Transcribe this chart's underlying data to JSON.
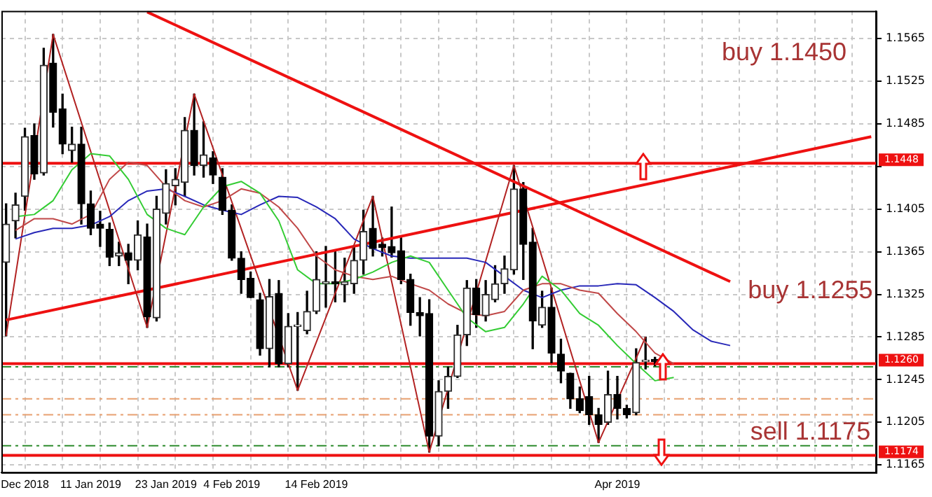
{
  "chart_data": {
    "type": "candlestick",
    "categories": [
      null,
      null,
      "Dec 2018",
      null,
      null,
      null,
      null,
      null,
      null,
      "11 Jan 2019",
      null,
      null,
      null,
      null,
      null,
      null,
      null,
      "23 Jan 2019",
      null,
      null,
      null,
      null,
      null,
      null,
      "4 Feb 2019",
      null,
      null,
      null,
      null,
      null,
      null,
      null,
      null,
      "14 Feb 2019",
      null,
      null,
      null,
      null,
      null,
      null,
      null,
      null,
      null,
      null,
      null,
      null,
      null,
      null,
      null,
      null,
      null,
      null,
      null,
      null,
      null,
      null,
      null,
      null,
      null,
      null,
      null,
      null,
      null,
      null,
      null,
      "Apr 2019",
      null,
      null,
      null,
      null,
      null,
      null,
      null,
      null,
      null,
      null,
      null,
      null,
      null,
      null,
      null,
      null,
      null,
      null,
      null,
      null,
      null,
      null,
      null,
      null,
      null,
      null,
      null
    ],
    "ohlc": [
      [
        1.1355,
        1.141,
        1.1286,
        1.1391
      ],
      [
        1.1394,
        1.142,
        1.1378,
        1.1409
      ],
      [
        1.1417,
        1.1481,
        1.1404,
        1.1473
      ],
      [
        1.1474,
        1.1485,
        1.1433,
        1.1438
      ],
      [
        1.1439,
        1.1556,
        1.1437,
        1.154
      ],
      [
        1.1542,
        1.1569,
        1.1482,
        1.1496
      ],
      [
        1.1499,
        1.1513,
        1.1457,
        1.1466
      ],
      [
        1.146,
        1.1482,
        1.1449,
        1.1466
      ],
      [
        1.1466,
        1.1482,
        1.1391,
        1.141
      ],
      [
        1.141,
        1.1422,
        1.1381,
        1.1387
      ],
      [
        1.1391,
        1.1403,
        1.137,
        1.1387
      ],
      [
        1.1386,
        1.1392,
        1.1352,
        1.136
      ],
      [
        1.1361,
        1.1374,
        1.1352,
        1.1364
      ],
      [
        1.1364,
        1.1372,
        1.1335,
        1.1357
      ],
      [
        1.1357,
        1.1394,
        1.1348,
        1.1381
      ],
      [
        1.1379,
        1.1391,
        1.1294,
        1.1304
      ],
      [
        1.1303,
        1.1417,
        1.13,
        1.1405
      ],
      [
        1.1401,
        1.1442,
        1.1391,
        1.1429
      ],
      [
        1.1427,
        1.1443,
        1.1409,
        1.1433
      ],
      [
        1.143,
        1.1491,
        1.1417,
        1.1479
      ],
      [
        1.1479,
        1.1513,
        1.1437,
        1.1446
      ],
      [
        1.1446,
        1.1487,
        1.1435,
        1.1456
      ],
      [
        1.1453,
        1.1459,
        1.1429,
        1.1437
      ],
      [
        1.1435,
        1.1443,
        1.14,
        1.1404
      ],
      [
        1.1404,
        1.1409,
        1.1357,
        1.1359
      ],
      [
        1.1359,
        1.1365,
        1.1326,
        1.1339
      ],
      [
        1.134,
        1.1346,
        1.1322,
        1.1322
      ],
      [
        1.132,
        1.1326,
        1.1268,
        1.1274
      ],
      [
        1.1274,
        1.1339,
        1.1257,
        1.1323
      ],
      [
        1.1326,
        1.1338,
        1.1257,
        1.126
      ],
      [
        1.126,
        1.1307,
        1.1257,
        1.1295
      ],
      [
        1.1295,
        1.1308,
        1.1235,
        1.1295
      ],
      [
        1.1291,
        1.1328,
        1.1288,
        1.1309
      ],
      [
        1.1309,
        1.1365,
        1.1307,
        1.1339
      ],
      [
        1.1335,
        1.137,
        1.1313,
        1.1337
      ],
      [
        1.1337,
        1.1365,
        1.1318,
        1.1335
      ],
      [
        1.1334,
        1.1359,
        1.1318,
        1.1337
      ],
      [
        1.1335,
        1.137,
        1.1326,
        1.1357
      ],
      [
        1.1357,
        1.1404,
        1.1344,
        1.1384
      ],
      [
        1.1387,
        1.1417,
        1.1361,
        1.1368
      ],
      [
        1.1372,
        1.1378,
        1.1361,
        1.1369
      ],
      [
        1.137,
        1.1407,
        1.136,
        1.1364
      ],
      [
        1.1366,
        1.1378,
        1.1335,
        1.1339
      ],
      [
        1.1339,
        1.1344,
        1.1296,
        1.1308
      ],
      [
        1.1308,
        1.1322,
        1.1286,
        1.1305
      ],
      [
        1.1307,
        1.132,
        1.1177,
        1.1192
      ],
      [
        1.1192,
        1.1244,
        1.1183,
        1.1234
      ],
      [
        1.1234,
        1.1257,
        1.1218,
        1.1248
      ],
      [
        1.1248,
        1.1296,
        1.1247,
        1.1287
      ],
      [
        1.1287,
        1.1338,
        1.1277,
        1.1331
      ],
      [
        1.1331,
        1.1339,
        1.1294,
        1.1306
      ],
      [
        1.1305,
        1.1338,
        1.13,
        1.1325
      ],
      [
        1.132,
        1.1352,
        1.1318,
        1.1335
      ],
      [
        1.1335,
        1.1361,
        1.1326,
        1.1349
      ],
      [
        1.1348,
        1.1446,
        1.1344,
        1.1424
      ],
      [
        1.1424,
        1.143,
        1.1339,
        1.1372
      ],
      [
        1.1374,
        1.1387,
        1.1274,
        1.13
      ],
      [
        1.1296,
        1.1328,
        1.1294,
        1.1313
      ],
      [
        1.1313,
        1.1331,
        1.1261,
        1.127
      ],
      [
        1.1269,
        1.1283,
        1.1242,
        1.1253
      ],
      [
        1.1251,
        1.1251,
        1.1218,
        1.1227
      ],
      [
        1.1227,
        1.1238,
        1.1214,
        1.1216
      ],
      [
        1.1229,
        1.1248,
        1.1203,
        1.1212
      ],
      [
        1.1212,
        1.1218,
        1.1186,
        1.1203
      ],
      [
        1.1205,
        1.1253,
        1.1203,
        1.1231
      ],
      [
        1.1231,
        1.1248,
        1.1208,
        1.1218
      ],
      [
        1.1218,
        1.1221,
        1.1209,
        1.1212
      ],
      [
        1.1214,
        1.1274,
        1.1212,
        1.1261
      ],
      [
        1.1262,
        1.1285,
        1.1255,
        1.1262
      ],
      [
        1.1264,
        1.1266,
        1.1258,
        1.1262
      ],
      null,
      null,
      null,
      null,
      null,
      null,
      null,
      null,
      null,
      null,
      null,
      null,
      null,
      null,
      null,
      null,
      null,
      null,
      null,
      null,
      null,
      null,
      null
    ],
    "series": [
      {
        "type": "line",
        "color": "#33cc33",
        "values": [
          null,
          1.1398,
          null,
          1.14,
          null,
          1.1413,
          null,
          1.1442,
          null,
          1.1457,
          null,
          1.1455,
          null,
          1.1433,
          null,
          1.14,
          null,
          1.1387,
          null,
          1.1381,
          null,
          1.1407,
          null,
          1.1426,
          null,
          1.1431,
          null,
          1.142,
          null,
          1.1394,
          null,
          1.1348,
          null,
          1.1335,
          null,
          1.1335,
          null,
          1.1339,
          null,
          1.1346,
          null,
          1.1355,
          null,
          1.1361,
          null,
          1.1355,
          null,
          1.1329,
          null,
          1.1303,
          null,
          1.129,
          null,
          1.1294,
          null,
          1.1316,
          null,
          1.1342,
          null,
          1.1329,
          null,
          1.1307,
          null,
          1.1296,
          null,
          1.1277,
          null,
          1.126,
          null,
          1.1244,
          null,
          1.1247,
          null,
          null,
          null,
          null,
          null,
          null,
          null,
          null,
          null,
          null,
          null,
          null,
          null,
          null,
          null,
          null,
          null,
          null,
          null,
          null,
          null
        ]
      },
      {
        "type": "line",
        "color": "#c04848",
        "values": [
          null,
          1.1385,
          null,
          1.1396,
          null,
          1.1396,
          null,
          1.1391,
          null,
          1.14,
          null,
          1.1433,
          null,
          1.1449,
          null,
          1.1446,
          null,
          1.1426,
          null,
          1.1413,
          null,
          1.1407,
          null,
          1.1413,
          null,
          1.1424,
          null,
          1.142,
          null,
          1.1407,
          null,
          1.1387,
          null,
          1.1361,
          null,
          1.1348,
          null,
          1.1342,
          null,
          1.1339,
          null,
          1.1342,
          null,
          1.1335,
          null,
          1.1329,
          null,
          1.1316,
          null,
          1.1307,
          null,
          1.1305,
          null,
          1.1309,
          null,
          1.1329,
          null,
          1.1335,
          null,
          1.1335,
          null,
          1.1329,
          null,
          1.1326,
          null,
          1.1307,
          null,
          1.129,
          null,
          1.127,
          null,
          1.126,
          null,
          null,
          null,
          null,
          null,
          null,
          null,
          null,
          null,
          null,
          null,
          null,
          null,
          null,
          null,
          null,
          null,
          null,
          null,
          null,
          null
        ]
      },
      {
        "type": "line",
        "color": "#2828b8",
        "values": [
          null,
          1.1377,
          null,
          1.1383,
          null,
          1.1387,
          null,
          1.1387,
          null,
          1.139,
          null,
          1.1398,
          null,
          1.1413,
          null,
          1.1422,
          null,
          1.1424,
          null,
          1.1417,
          null,
          1.1409,
          null,
          1.1404,
          null,
          1.14,
          null,
          1.1409,
          null,
          1.1417,
          null,
          1.1416,
          null,
          1.1407,
          null,
          1.1396,
          null,
          1.1377,
          null,
          1.1368,
          null,
          1.1361,
          null,
          1.1359,
          null,
          1.1359,
          null,
          1.1359,
          null,
          1.1359,
          null,
          1.1355,
          null,
          1.1342,
          null,
          1.1329,
          null,
          1.1322,
          null,
          1.1329,
          null,
          1.1333,
          null,
          1.1333,
          null,
          1.1335,
          null,
          1.1334,
          null,
          1.1322,
          null,
          1.1309,
          null,
          1.1292,
          null,
          1.1281,
          null,
          1.1277,
          null,
          null,
          null,
          null,
          null,
          null,
          null,
          null,
          null,
          null,
          null,
          null,
          null,
          null,
          null
        ]
      },
      {
        "type": "line",
        "color": "#b22222",
        "values": [
          1.1286,
          null,
          null,
          null,
          null,
          1.1569,
          null,
          null,
          null,
          null,
          null,
          null,
          null,
          null,
          null,
          1.1294,
          null,
          null,
          null,
          null,
          1.1513,
          null,
          null,
          null,
          null,
          null,
          null,
          null,
          null,
          null,
          null,
          1.1235,
          null,
          null,
          null,
          null,
          null,
          null,
          null,
          1.1417,
          null,
          null,
          null,
          null,
          null,
          1.1177,
          null,
          null,
          null,
          null,
          null,
          null,
          null,
          null,
          1.1446,
          null,
          null,
          null,
          null,
          null,
          null,
          null,
          null,
          1.1186,
          null,
          null,
          null,
          null,
          1.1285,
          null,
          null,
          null,
          null,
          null,
          null,
          null,
          null,
          null,
          null,
          null,
          null,
          null,
          null,
          null,
          null,
          null,
          null,
          null,
          null,
          null,
          null,
          null,
          null
        ]
      },
      {
        "type": "line",
        "color": "#ee1111",
        "values": [
          null,
          null,
          null,
          null,
          null,
          null,
          null,
          null,
          null,
          null,
          null,
          null,
          null,
          null,
          null,
          1.159,
          null,
          null,
          null,
          null,
          null,
          null,
          null,
          null,
          null,
          null,
          null,
          null,
          null,
          null,
          null,
          null,
          null,
          null,
          null,
          null,
          null,
          null,
          null,
          null,
          null,
          null,
          null,
          null,
          null,
          null,
          null,
          null,
          null,
          null,
          null,
          null,
          null,
          null,
          null,
          null,
          null,
          null,
          null,
          null,
          null,
          null,
          null,
          null,
          null,
          null,
          null,
          null,
          null,
          null,
          null,
          null,
          null,
          null,
          null,
          null,
          null,
          1.1337,
          null,
          null,
          null,
          null,
          null,
          null,
          null,
          null,
          null,
          null,
          null,
          null,
          null,
          null,
          null
        ]
      },
      {
        "type": "line",
        "color": "#ee1111",
        "values": [
          1.1301,
          null,
          null,
          null,
          null,
          null,
          null,
          null,
          null,
          null,
          null,
          null,
          null,
          null,
          null,
          null,
          null,
          null,
          null,
          null,
          null,
          null,
          null,
          null,
          null,
          null,
          null,
          null,
          null,
          null,
          null,
          null,
          null,
          null,
          null,
          null,
          null,
          null,
          null,
          null,
          null,
          null,
          null,
          null,
          null,
          null,
          null,
          null,
          null,
          null,
          null,
          null,
          null,
          null,
          null,
          null,
          null,
          null,
          null,
          null,
          null,
          null,
          null,
          null,
          null,
          null,
          null,
          null,
          null,
          null,
          null,
          null,
          null,
          null,
          null,
          null,
          null,
          null,
          null,
          null,
          null,
          null,
          null,
          null,
          null,
          null,
          null,
          null,
          null,
          null,
          null,
          null,
          1.1473
        ]
      }
    ],
    "ylim": [
      1.1158,
      1.1591
    ],
    "yticks": [
      1.1165,
      1.1205,
      1.1245,
      1.1285,
      1.1325,
      1.1365,
      1.1405,
      {
        "value": 1.1445,
        "label": null
      },
      1.1485,
      1.1525,
      1.1565
    ],
    "ref_lines": [
      {
        "axis": "y",
        "value": 1.1448,
        "label": "1.1448",
        "color": "#ee1111"
      },
      {
        "axis": "y",
        "value": 1.126,
        "label": "1.1260",
        "color": "#ee1111"
      },
      {
        "axis": "y",
        "value": 1.1174,
        "label": "1.1174",
        "color": "#ee1111"
      },
      {
        "axis": "y",
        "value": 1.1257,
        "color": "#2e8b2e",
        "line_style": "dashed"
      },
      {
        "axis": "y",
        "value": 1.1227,
        "color": "#e8a070",
        "line_style": "dashed"
      },
      {
        "axis": "y",
        "value": 1.1212,
        "color": "#e8a070",
        "line_style": "dashed"
      },
      {
        "axis": "y",
        "value": 1.1183,
        "color": "#2e8b2e",
        "line_style": "dashed"
      }
    ],
    "annotations": [
      "buy 1.1450",
      "buy 1.1255",
      "sell 1.1175"
    ],
    "grid": true,
    "legend": false
  }
}
